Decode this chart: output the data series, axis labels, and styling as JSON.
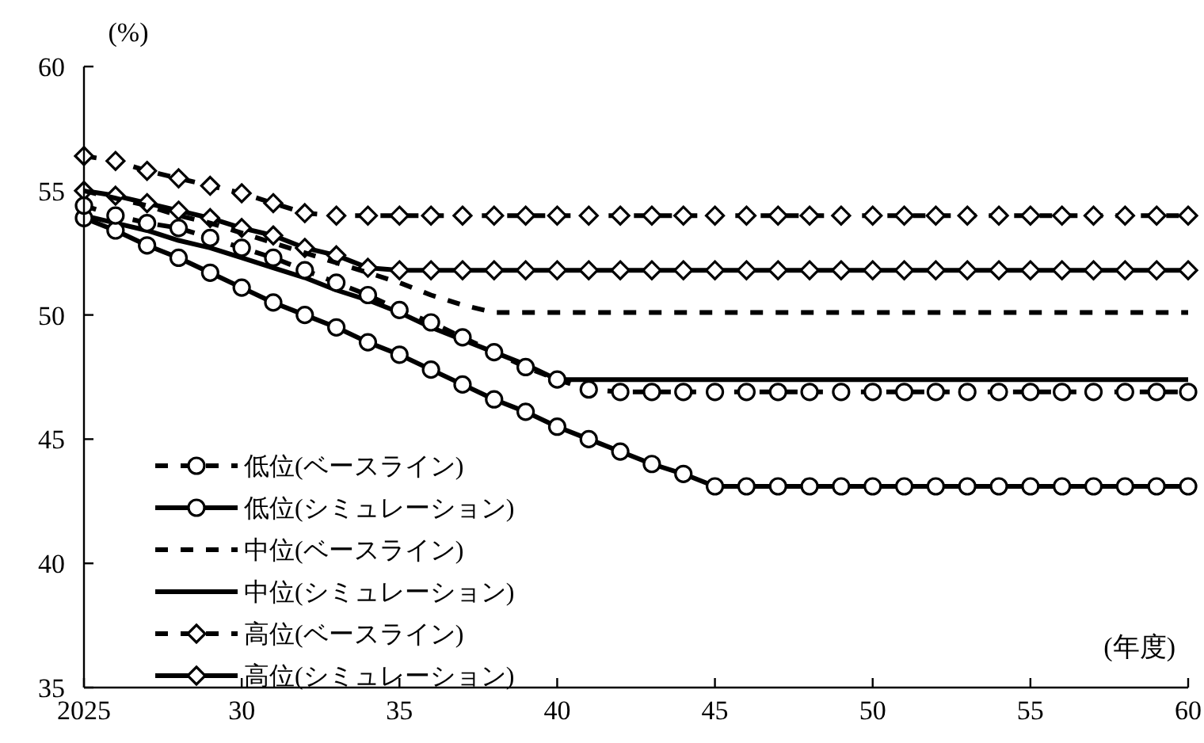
{
  "chart_data": {
    "type": "line",
    "xlabel": "(年度)",
    "ylabel": "(%)",
    "x": [
      2025,
      2026,
      2027,
      2028,
      2029,
      2030,
      2031,
      2032,
      2033,
      2034,
      2035,
      2036,
      2037,
      2038,
      2039,
      2040,
      2041,
      2042,
      2043,
      2044,
      2045,
      2046,
      2047,
      2048,
      2049,
      2050,
      2051,
      2052,
      2053,
      2054,
      2055,
      2056,
      2057,
      2058,
      2059,
      2060
    ],
    "xlim": [
      2025,
      2060
    ],
    "xticks": [
      2025,
      {
        "value": 2030,
        "label": "30"
      },
      {
        "value": 2035,
        "label": "35"
      },
      {
        "value": 2040,
        "label": "40"
      },
      {
        "value": 2045,
        "label": "45"
      },
      {
        "value": 2050,
        "label": "50"
      },
      {
        "value": 2055,
        "label": "55"
      },
      {
        "value": 2060,
        "label": "60"
      }
    ],
    "ylim": [
      35,
      60
    ],
    "yticks": [
      35,
      40,
      45,
      50,
      55,
      60
    ],
    "grid": false,
    "legend": "bottom left",
    "series": [
      {
        "name": "低位(ベースライン)",
        "color": "#000000",
        "marker": "circle",
        "line_style": "dashed",
        "values": [
          54.4,
          54.0,
          53.7,
          53.5,
          53.1,
          52.7,
          52.3,
          51.8,
          51.3,
          50.8,
          50.2,
          49.7,
          49.1,
          48.5,
          47.9,
          47.4,
          47.0,
          46.9,
          46.9,
          46.9,
          46.9,
          46.9,
          46.9,
          46.9,
          46.9,
          46.9,
          46.9,
          46.9,
          46.9,
          46.9,
          46.9,
          46.9,
          46.9,
          46.9,
          46.9,
          46.9
        ]
      },
      {
        "name": "低位(シミュレーション)",
        "color": "#000000",
        "marker": "circle",
        "line_style": "solid",
        "values": [
          53.9,
          53.4,
          52.8,
          52.3,
          51.7,
          51.1,
          50.5,
          50.0,
          49.5,
          48.9,
          48.4,
          47.8,
          47.2,
          46.6,
          46.1,
          45.5,
          45.0,
          44.5,
          44.0,
          43.6,
          43.1,
          43.1,
          43.1,
          43.1,
          43.1,
          43.1,
          43.1,
          43.1,
          43.1,
          43.1,
          43.1,
          43.1,
          43.1,
          43.1,
          43.1,
          43.1
        ]
      },
      {
        "name": "中位(ベースライン)",
        "color": "#000000",
        "marker": "none",
        "line_style": "dashed",
        "values": [
          55.0,
          54.7,
          54.4,
          54.0,
          53.7,
          53.3,
          52.9,
          52.5,
          52.1,
          51.7,
          51.3,
          50.8,
          50.4,
          50.1,
          50.1,
          50.1,
          50.1,
          50.1,
          50.1,
          50.1,
          50.1,
          50.1,
          50.1,
          50.1,
          50.1,
          50.1,
          50.1,
          50.1,
          50.1,
          50.1,
          50.1,
          50.1,
          50.1,
          50.1,
          50.1,
          50.1
        ]
      },
      {
        "name": "中位(シミュレーション)",
        "color": "#000000",
        "marker": "none",
        "line_style": "solid",
        "values": [
          54.0,
          53.7,
          53.4,
          53.0,
          52.7,
          52.3,
          51.9,
          51.5,
          51.0,
          50.6,
          50.1,
          49.5,
          49.0,
          48.5,
          48.0,
          47.4,
          47.4,
          47.4,
          47.4,
          47.4,
          47.4,
          47.4,
          47.4,
          47.4,
          47.4,
          47.4,
          47.4,
          47.4,
          47.4,
          47.4,
          47.4,
          47.4,
          47.4,
          47.4,
          47.4,
          47.4
        ]
      },
      {
        "name": "高位(ベースライン)",
        "color": "#000000",
        "marker": "diamond",
        "line_style": "dashed",
        "values": [
          56.4,
          56.2,
          55.8,
          55.5,
          55.2,
          54.9,
          54.5,
          54.1,
          54.0,
          54.0,
          54.0,
          54.0,
          54.0,
          54.0,
          54.0,
          54.0,
          54.0,
          54.0,
          54.0,
          54.0,
          54.0,
          54.0,
          54.0,
          54.0,
          54.0,
          54.0,
          54.0,
          54.0,
          54.0,
          54.0,
          54.0,
          54.0,
          54.0,
          54.0,
          54.0,
          54.0
        ]
      },
      {
        "name": "高位(シミュレーション)",
        "color": "#000000",
        "marker": "diamond",
        "line_style": "solid",
        "values": [
          55.0,
          54.8,
          54.5,
          54.2,
          53.9,
          53.5,
          53.2,
          52.7,
          52.4,
          51.9,
          51.8,
          51.8,
          51.8,
          51.8,
          51.8,
          51.8,
          51.8,
          51.8,
          51.8,
          51.8,
          51.8,
          51.8,
          51.8,
          51.8,
          51.8,
          51.8,
          51.8,
          51.8,
          51.8,
          51.8,
          51.8,
          51.8,
          51.8,
          51.8,
          51.8,
          51.8
        ]
      }
    ]
  }
}
